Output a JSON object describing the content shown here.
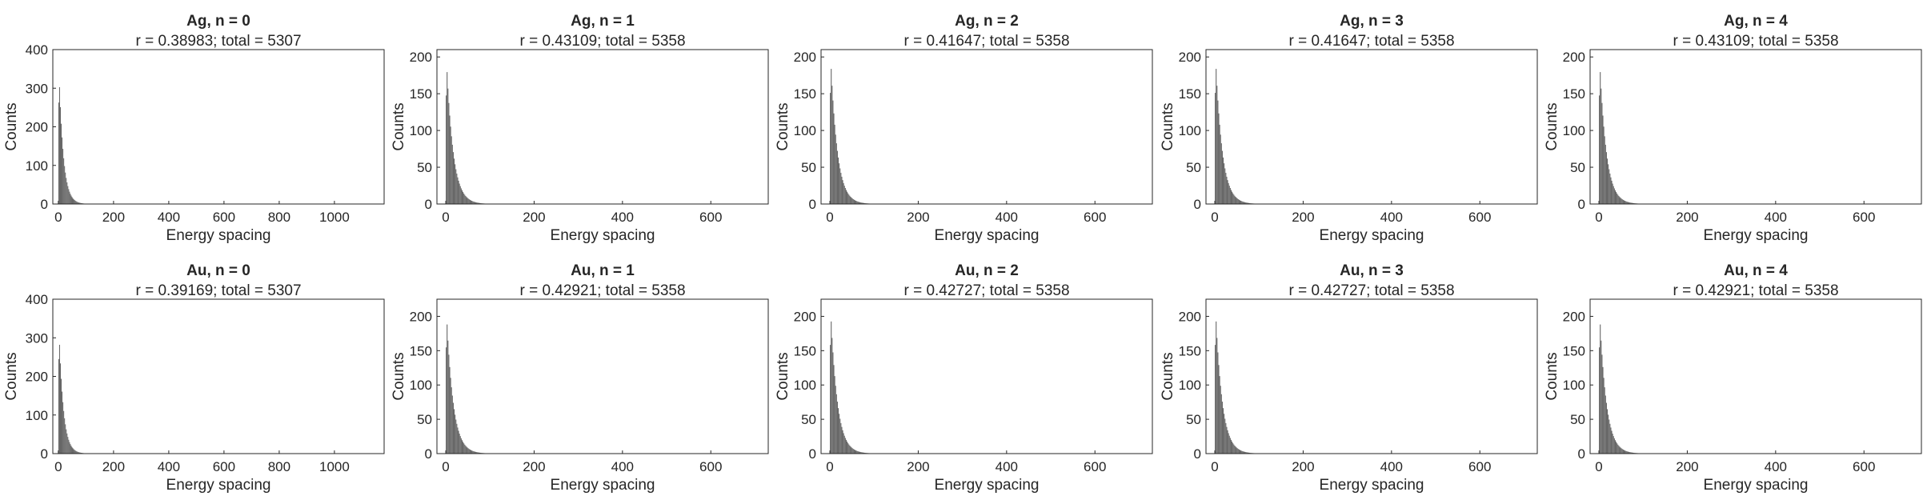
{
  "figure": {
    "bar_color": "#666666",
    "axis_color": "#262626"
  },
  "chart_data": [
    {
      "type": "bar",
      "title": "Ag, n = 0",
      "subtitle": "r = 0.38983; total = 5307",
      "xlabel": "Energy spacing",
      "ylabel": "Counts",
      "xlim": [
        -20,
        1180
      ],
      "ylim": [
        0,
        400
      ],
      "xticks": [
        0,
        200,
        400,
        600,
        800,
        1000
      ],
      "yticks": [
        0,
        100,
        200,
        300,
        400
      ],
      "bin_width": 3,
      "peak": 365,
      "decay": 16
    },
    {
      "type": "bar",
      "title": "Ag, n = 1",
      "subtitle": "r = 0.43109; total = 5358",
      "xlabel": "Energy spacing",
      "ylabel": "Counts",
      "xlim": [
        -20,
        730
      ],
      "ylim": [
        0,
        210
      ],
      "xticks": [
        0,
        200,
        400,
        600
      ],
      "yticks": [
        0,
        50,
        100,
        150,
        200
      ],
      "bin_width": 2,
      "peak": 205,
      "decay": 15
    },
    {
      "type": "bar",
      "title": "Ag, n = 2",
      "subtitle": "r = 0.41647; total = 5358",
      "xlabel": "Energy spacing",
      "ylabel": "Counts",
      "xlim": [
        -20,
        730
      ],
      "ylim": [
        0,
        210
      ],
      "xticks": [
        0,
        200,
        400,
        600
      ],
      "yticks": [
        0,
        50,
        100,
        150,
        200
      ],
      "bin_width": 2,
      "peak": 210,
      "decay": 15
    },
    {
      "type": "bar",
      "title": "Ag, n = 3",
      "subtitle": "r = 0.41647; total = 5358",
      "xlabel": "Energy spacing",
      "ylabel": "Counts",
      "xlim": [
        -20,
        730
      ],
      "ylim": [
        0,
        210
      ],
      "xticks": [
        0,
        200,
        400,
        600
      ],
      "yticks": [
        0,
        50,
        100,
        150,
        200
      ],
      "bin_width": 2,
      "peak": 210,
      "decay": 15
    },
    {
      "type": "bar",
      "title": "Ag, n = 4",
      "subtitle": "r = 0.43109; total = 5358",
      "xlabel": "Energy spacing",
      "ylabel": "Counts",
      "xlim": [
        -20,
        730
      ],
      "ylim": [
        0,
        210
      ],
      "xticks": [
        0,
        200,
        400,
        600
      ],
      "yticks": [
        0,
        50,
        100,
        150,
        200
      ],
      "bin_width": 2,
      "peak": 205,
      "decay": 15
    },
    {
      "type": "bar",
      "title": "Au, n = 0",
      "subtitle": "r = 0.39169; total = 5307",
      "xlabel": "Energy spacing",
      "ylabel": "Counts",
      "xlim": [
        -20,
        1180
      ],
      "ylim": [
        0,
        400
      ],
      "xticks": [
        0,
        200,
        400,
        600,
        800,
        1000
      ],
      "yticks": [
        0,
        100,
        200,
        300,
        400
      ],
      "bin_width": 3,
      "peak": 340,
      "decay": 16
    },
    {
      "type": "bar",
      "title": "Au, n = 1",
      "subtitle": "r = 0.42921; total = 5358",
      "xlabel": "Energy spacing",
      "ylabel": "Counts",
      "xlim": [
        -20,
        730
      ],
      "ylim": [
        0,
        225
      ],
      "xticks": [
        0,
        200,
        400,
        600
      ],
      "yticks": [
        0,
        50,
        100,
        150,
        200
      ],
      "bin_width": 2,
      "peak": 215,
      "decay": 15
    },
    {
      "type": "bar",
      "title": "Au, n = 2",
      "subtitle": "r = 0.42727; total = 5358",
      "xlabel": "Energy spacing",
      "ylabel": "Counts",
      "xlim": [
        -20,
        730
      ],
      "ylim": [
        0,
        225
      ],
      "xticks": [
        0,
        200,
        400,
        600
      ],
      "yticks": [
        0,
        50,
        100,
        150,
        200
      ],
      "bin_width": 2,
      "peak": 220,
      "decay": 15
    },
    {
      "type": "bar",
      "title": "Au, n = 3",
      "subtitle": "r = 0.42727; total = 5358",
      "xlabel": "Energy spacing",
      "ylabel": "Counts",
      "xlim": [
        -20,
        730
      ],
      "ylim": [
        0,
        225
      ],
      "xticks": [
        0,
        200,
        400,
        600
      ],
      "yticks": [
        0,
        50,
        100,
        150,
        200
      ],
      "bin_width": 2,
      "peak": 220,
      "decay": 15
    },
    {
      "type": "bar",
      "title": "Au, n = 4",
      "subtitle": "r = 0.42921; total = 5358",
      "xlabel": "Energy spacing",
      "ylabel": "Counts",
      "xlim": [
        -20,
        730
      ],
      "ylim": [
        0,
        225
      ],
      "xticks": [
        0,
        200,
        400,
        600
      ],
      "yticks": [
        0,
        50,
        100,
        150,
        200
      ],
      "bin_width": 2,
      "peak": 215,
      "decay": 15
    }
  ]
}
